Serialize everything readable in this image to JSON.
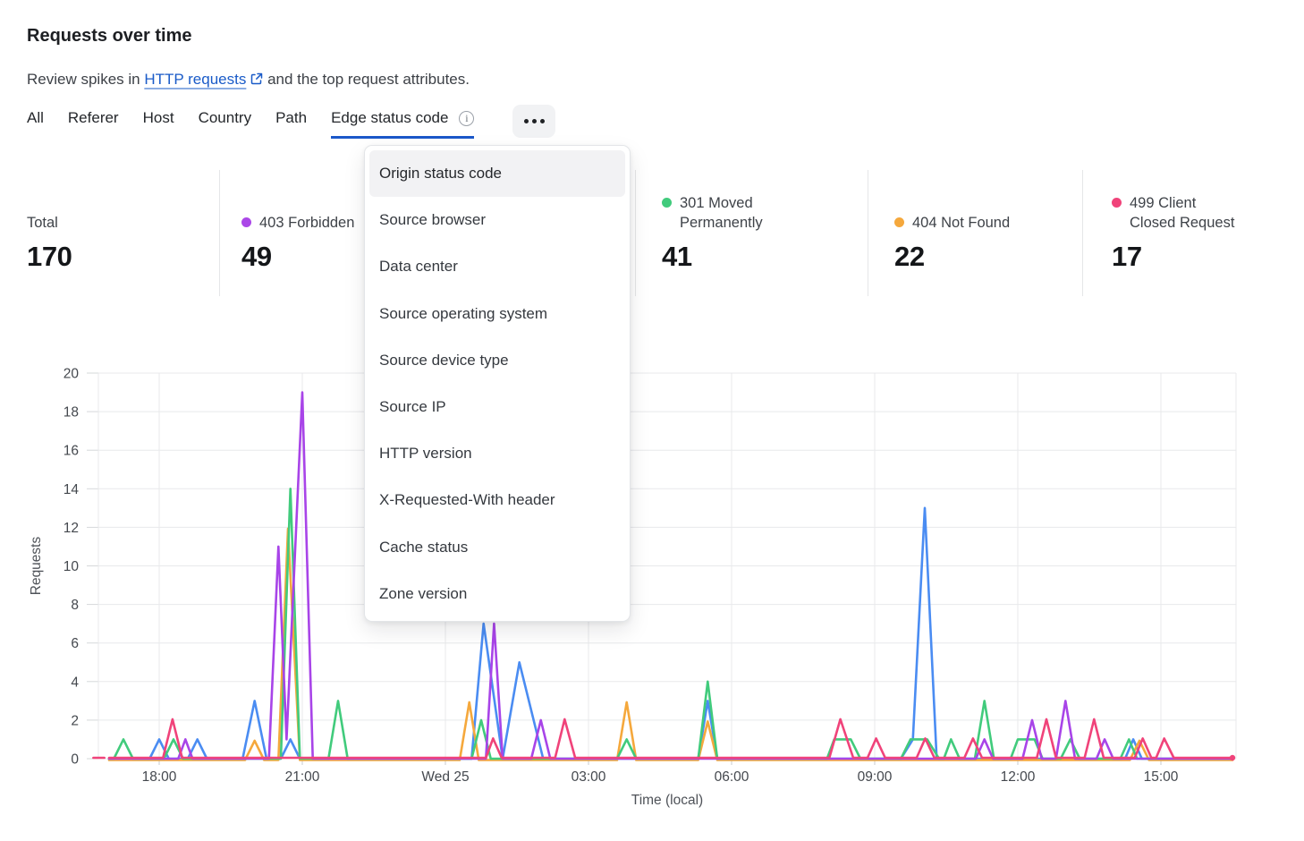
{
  "header": {
    "title": "Requests over time",
    "subtitle": {
      "prefix": "Review spikes in",
      "link_text": "HTTP requests",
      "suffix": "and the top request attributes."
    }
  },
  "icons": {
    "more": "ellipsis-icon",
    "info": "info-icon",
    "external_link": "external-link-icon"
  },
  "tabs": {
    "items": [
      "All",
      "Referer",
      "Host",
      "Country",
      "Path",
      "Edge status code"
    ],
    "active": "Edge status code"
  },
  "dropdown": {
    "highlighted": "Origin status code",
    "items": [
      "Origin status code",
      "Source browser",
      "Data center",
      "Source operating system",
      "Source device type",
      "Source IP",
      "HTTP version",
      "X-Requested-With header",
      "Cache status",
      "Zone version"
    ]
  },
  "stats": [
    {
      "label": "Total",
      "value": "170",
      "dot_color": null
    },
    {
      "label": "403 Forbidden",
      "value": "49",
      "dot_color": "#AB47E8"
    },
    {
      "label": "301 Moved Permanently",
      "value": "41",
      "dot_color": "#41CB7C"
    },
    {
      "label": "404 Not Found",
      "value": "22",
      "dot_color": "#F5A83C"
    },
    {
      "label": "499 Client Closed Request",
      "value": "17",
      "dot_color": "#F0437A"
    }
  ],
  "chart_data": {
    "type": "line",
    "title": "Requests over time",
    "xlabel": "Time (local)",
    "ylabel": "Requests",
    "ylim": [
      0,
      20
    ],
    "grid": true,
    "legend_position": "top (stat cards; one legend entry hidden behind open menu)",
    "x_unit": "hours, 24 = Wed 25 00:00 local",
    "x_range": [
      16.7,
      40.6
    ],
    "y_axis": {
      "ticks": [
        0,
        2,
        4,
        6,
        8,
        10,
        12,
        14,
        16,
        18,
        20
      ]
    },
    "x_axis": {
      "ticks": [
        {
          "hour": 18,
          "label": "18:00"
        },
        {
          "hour": 21,
          "label": "21:00"
        },
        {
          "hour": 24,
          "label": "Wed 25"
        },
        {
          "hour": 27,
          "label": "03:00"
        },
        {
          "hour": 30,
          "label": "06:00"
        },
        {
          "hour": 33,
          "label": "09:00"
        },
        {
          "hour": 36,
          "label": "12:00"
        },
        {
          "hour": 39,
          "label": "15:00"
        }
      ]
    },
    "series": [
      {
        "name": "unknown (legend hidden behind menu)",
        "color": "#4A8CF2",
        "points": [
          [
            16.95,
            0
          ],
          [
            17.8,
            0
          ],
          [
            18.0,
            1
          ],
          [
            18.2,
            0
          ],
          [
            18.6,
            0
          ],
          [
            18.8,
            1
          ],
          [
            19.0,
            0
          ],
          [
            19.75,
            0
          ],
          [
            20.0,
            3
          ],
          [
            20.25,
            0
          ],
          [
            20.55,
            0
          ],
          [
            20.75,
            1
          ],
          [
            20.95,
            0
          ],
          [
            24.55,
            0
          ],
          [
            24.8,
            7
          ],
          [
            25.2,
            0
          ],
          [
            25.55,
            5
          ],
          [
            26.05,
            0
          ],
          [
            29.3,
            0
          ],
          [
            29.5,
            3
          ],
          [
            29.7,
            0
          ],
          [
            33.55,
            0
          ],
          [
            33.8,
            1
          ],
          [
            34.05,
            13
          ],
          [
            34.3,
            0
          ],
          [
            38.25,
            0
          ],
          [
            38.42,
            1
          ],
          [
            38.6,
            0
          ],
          [
            40.5,
            0
          ]
        ]
      },
      {
        "name": "404 Not Found",
        "color": "#F5A83C",
        "points": [
          [
            16.95,
            0
          ],
          [
            19.8,
            0
          ],
          [
            20.0,
            1
          ],
          [
            20.2,
            0
          ],
          [
            20.5,
            0
          ],
          [
            20.7,
            12
          ],
          [
            20.95,
            0
          ],
          [
            24.3,
            0
          ],
          [
            24.5,
            3
          ],
          [
            24.7,
            0
          ],
          [
            27.6,
            0
          ],
          [
            27.8,
            3
          ],
          [
            28.0,
            0
          ],
          [
            29.3,
            0
          ],
          [
            29.5,
            2
          ],
          [
            29.7,
            0
          ],
          [
            38.35,
            0
          ],
          [
            38.55,
            1
          ],
          [
            38.75,
            0
          ],
          [
            40.5,
            0
          ]
        ]
      },
      {
        "name": "301 Moved Permanently",
        "color": "#41CB7C",
        "points": [
          [
            16.95,
            0
          ],
          [
            17.05,
            0
          ],
          [
            17.25,
            1
          ],
          [
            17.45,
            0
          ],
          [
            18.1,
            0
          ],
          [
            18.3,
            1
          ],
          [
            18.5,
            0
          ],
          [
            20.55,
            0
          ],
          [
            20.75,
            14
          ],
          [
            20.95,
            0
          ],
          [
            21.55,
            0
          ],
          [
            21.75,
            3
          ],
          [
            21.95,
            0
          ],
          [
            24.55,
            0
          ],
          [
            24.75,
            2
          ],
          [
            24.95,
            0
          ],
          [
            27.6,
            0
          ],
          [
            27.8,
            1
          ],
          [
            28.0,
            0
          ],
          [
            29.3,
            0
          ],
          [
            29.5,
            4
          ],
          [
            29.7,
            0
          ],
          [
            32.0,
            0
          ],
          [
            32.15,
            1
          ],
          [
            32.5,
            1
          ],
          [
            32.7,
            0
          ],
          [
            33.55,
            0
          ],
          [
            33.75,
            1
          ],
          [
            34.1,
            1
          ],
          [
            34.35,
            0
          ],
          [
            34.45,
            0
          ],
          [
            34.6,
            1
          ],
          [
            34.78,
            0
          ],
          [
            35.1,
            0
          ],
          [
            35.3,
            3
          ],
          [
            35.5,
            0
          ],
          [
            35.85,
            0
          ],
          [
            36.0,
            1
          ],
          [
            36.35,
            1
          ],
          [
            36.52,
            0
          ],
          [
            36.9,
            0
          ],
          [
            37.1,
            1
          ],
          [
            37.3,
            0
          ],
          [
            38.15,
            0
          ],
          [
            38.33,
            1
          ],
          [
            38.5,
            0
          ],
          [
            40.5,
            0
          ]
        ]
      },
      {
        "name": "403 Forbidden",
        "color": "#A844E8",
        "points": [
          [
            16.95,
            0
          ],
          [
            18.4,
            0
          ],
          [
            18.55,
            1
          ],
          [
            18.7,
            0
          ],
          [
            20.3,
            0
          ],
          [
            20.5,
            11
          ],
          [
            20.67,
            1
          ],
          [
            21.0,
            19
          ],
          [
            21.22,
            0
          ],
          [
            24.85,
            0
          ],
          [
            25.02,
            7
          ],
          [
            25.2,
            0
          ],
          [
            25.8,
            0
          ],
          [
            26.0,
            2
          ],
          [
            26.2,
            0
          ],
          [
            35.12,
            0
          ],
          [
            35.3,
            1
          ],
          [
            35.48,
            0
          ],
          [
            36.1,
            0
          ],
          [
            36.3,
            2
          ],
          [
            36.5,
            0
          ],
          [
            36.8,
            0
          ],
          [
            37.0,
            3
          ],
          [
            37.2,
            0
          ],
          [
            37.65,
            0
          ],
          [
            37.82,
            1
          ],
          [
            38.0,
            0
          ],
          [
            40.5,
            0
          ]
        ]
      },
      {
        "name": "499 Client Closed Request",
        "color": "#F0437A",
        "points": [
          [
            16.95,
            0
          ],
          [
            18.08,
            0
          ],
          [
            18.28,
            2
          ],
          [
            18.48,
            0
          ],
          [
            24.85,
            0
          ],
          [
            25.0,
            1
          ],
          [
            25.18,
            0
          ],
          [
            26.3,
            0
          ],
          [
            26.5,
            2
          ],
          [
            26.72,
            0
          ],
          [
            32.05,
            0
          ],
          [
            32.28,
            2
          ],
          [
            32.55,
            0
          ],
          [
            32.85,
            0
          ],
          [
            33.03,
            1
          ],
          [
            33.22,
            0
          ],
          [
            33.88,
            0
          ],
          [
            34.06,
            1
          ],
          [
            34.25,
            0
          ],
          [
            34.88,
            0
          ],
          [
            35.06,
            1
          ],
          [
            35.25,
            0
          ],
          [
            36.4,
            0
          ],
          [
            36.6,
            2
          ],
          [
            36.8,
            0
          ],
          [
            37.4,
            0
          ],
          [
            37.6,
            2
          ],
          [
            37.8,
            0
          ],
          [
            38.45,
            0
          ],
          [
            38.62,
            1
          ],
          [
            38.8,
            0
          ],
          [
            38.9,
            0
          ],
          [
            39.07,
            1
          ],
          [
            39.27,
            0
          ],
          [
            40.5,
            0
          ]
        ],
        "start_dash": [
          16.62,
          16.85
        ],
        "end_dot": 40.5
      }
    ]
  }
}
